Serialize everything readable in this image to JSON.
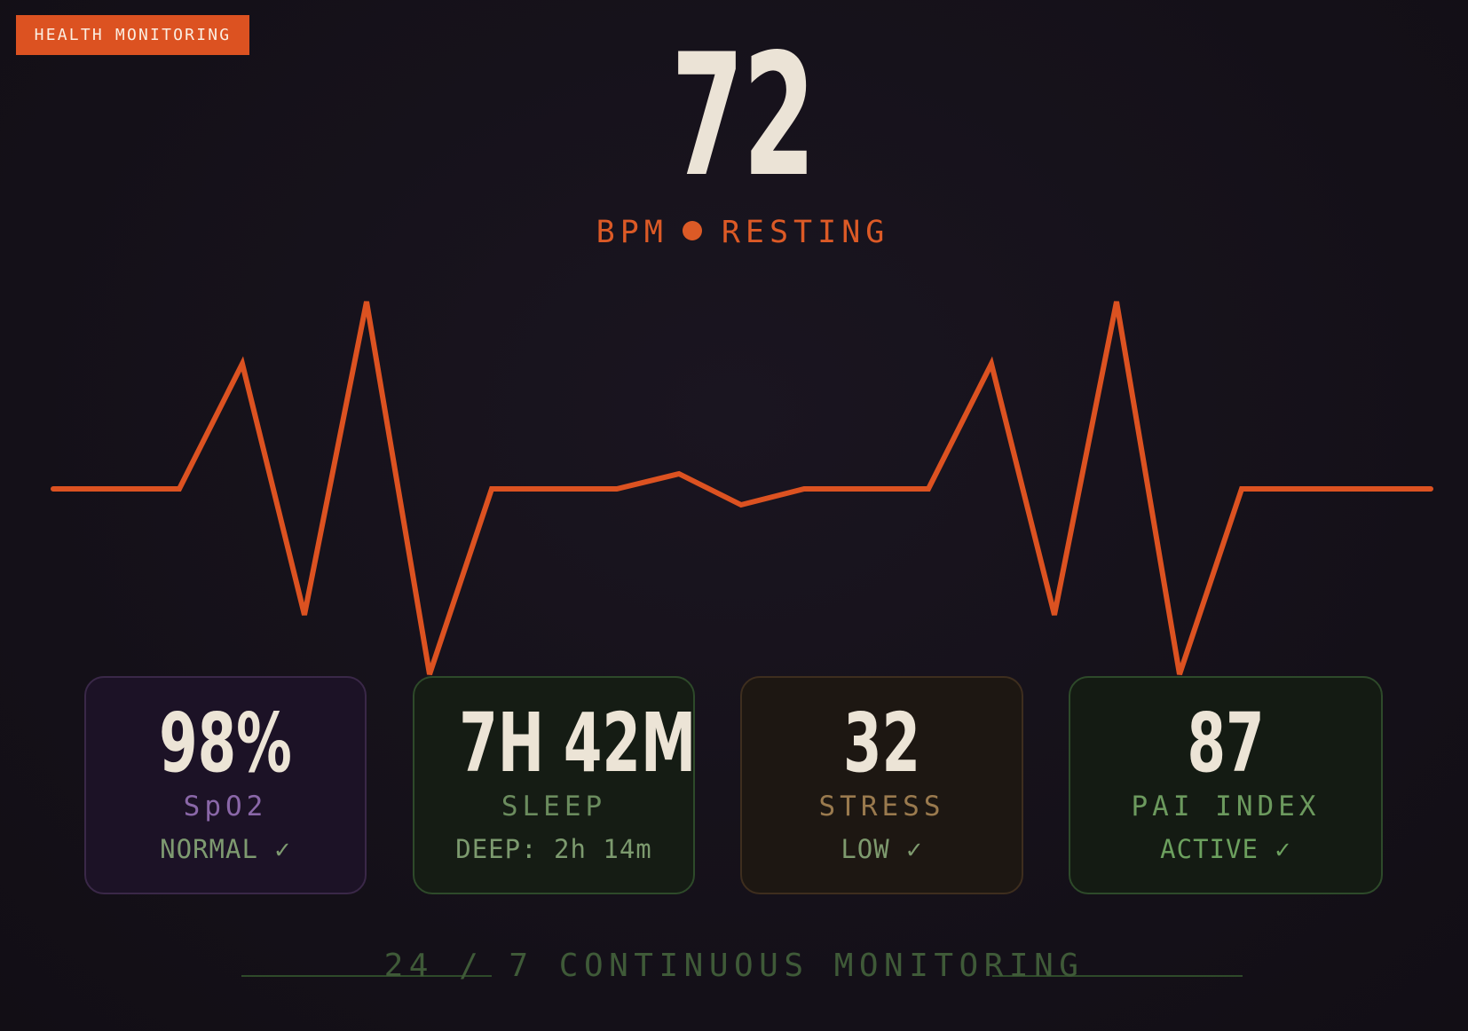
{
  "header": {
    "badge": "HEALTH MONITORING"
  },
  "heart_rate": {
    "value": "72",
    "unit": "BPM",
    "state": "RESTING"
  },
  "metrics": [
    {
      "value": "98%",
      "label": "SpO2",
      "status": "NORMAL ✓"
    },
    {
      "value": "7H 42M",
      "label": "SLEEP",
      "status": "DEEP: 2h 14m"
    },
    {
      "value": "32",
      "label": "STRESS",
      "status": "LOW ✓"
    },
    {
      "value": "87",
      "label": "PAI INDEX",
      "status": "ACTIVE ✓"
    }
  ],
  "footer": {
    "text": "24 / 7 CONTINUOUS MONITORING"
  },
  "colors": {
    "background": "#15111a",
    "accent": "#dc5221",
    "primary_text": "#ebe3d6",
    "spo2": "#8a67a8",
    "sleep": "#6b8c5e",
    "stress": "#9a7a4e",
    "pai": "#6c9a5e"
  },
  "icons": {
    "status_dot": "status-dot-icon",
    "check": "checkmark"
  }
}
